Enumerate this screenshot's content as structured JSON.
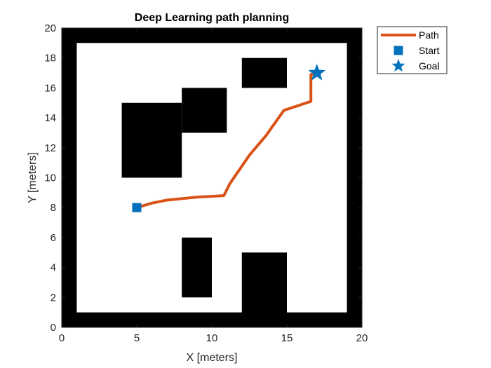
{
  "chart_data": {
    "type": "line",
    "title": "Deep Learning path planning",
    "xlabel": "X [meters]",
    "ylabel": "Y [meters]",
    "xlim": [
      0,
      20
    ],
    "ylim": [
      0,
      20
    ],
    "xticks": [
      0,
      5,
      10,
      15,
      20
    ],
    "yticks": [
      0,
      2,
      4,
      6,
      8,
      10,
      12,
      14,
      16,
      18,
      20
    ],
    "grid": false,
    "legend_position": "top-right, outside axes",
    "map": {
      "free_space_color": "#ffffff",
      "occupied_color": "#000000",
      "occupied_cells": [
        {
          "x": [
            0,
            20
          ],
          "y": [
            0,
            1
          ]
        },
        {
          "x": [
            0,
            20
          ],
          "y": [
            19,
            20
          ]
        },
        {
          "x": [
            0,
            1
          ],
          "y": [
            0,
            20
          ]
        },
        {
          "x": [
            19,
            20
          ],
          "y": [
            0,
            20
          ]
        },
        {
          "x": [
            4,
            8
          ],
          "y": [
            10,
            15
          ]
        },
        {
          "x": [
            8,
            11
          ],
          "y": [
            13,
            16
          ]
        },
        {
          "x": [
            12,
            15
          ],
          "y": [
            16,
            18
          ]
        },
        {
          "x": [
            8,
            10
          ],
          "y": [
            2,
            6
          ]
        },
        {
          "x": [
            12,
            15
          ],
          "y": [
            0,
            5
          ]
        }
      ]
    },
    "series": [
      {
        "name": "Path",
        "kind": "line",
        "color": "#d95319",
        "points": [
          [
            5,
            8
          ],
          [
            6,
            8.3
          ],
          [
            7,
            8.5
          ],
          [
            9,
            8.7
          ],
          [
            10.8,
            8.8
          ],
          [
            11.2,
            9.6
          ],
          [
            12.5,
            11.5
          ],
          [
            13.6,
            12.8
          ],
          [
            14.8,
            14.5
          ],
          [
            16.6,
            15.1
          ],
          [
            16.6,
            16.9
          ],
          [
            17,
            17
          ]
        ]
      },
      {
        "name": "Start",
        "kind": "square-marker",
        "color": "#0072bd",
        "points": [
          [
            5,
            8
          ]
        ]
      },
      {
        "name": "Goal",
        "kind": "star-marker",
        "color": "#0072bd",
        "points": [
          [
            17,
            17
          ]
        ]
      }
    ]
  }
}
